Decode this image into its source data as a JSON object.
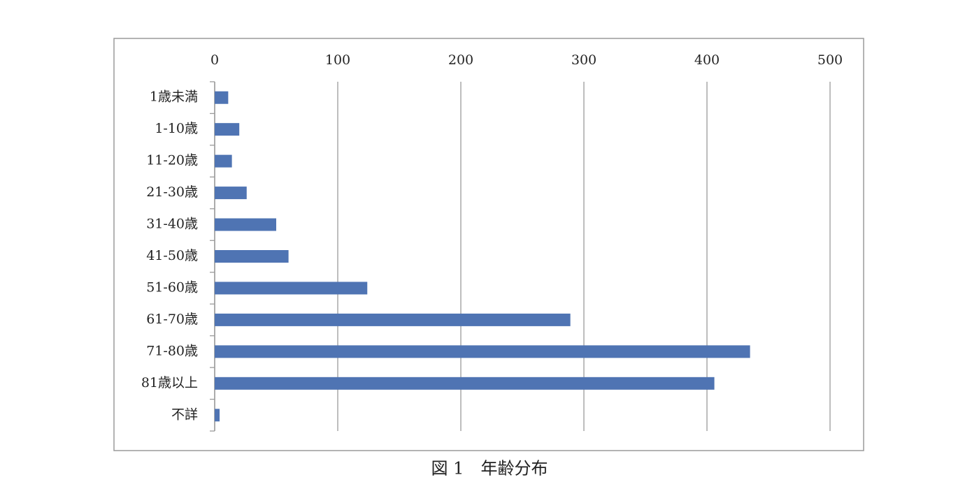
{
  "chart_data": {
    "type": "bar",
    "orientation": "horizontal",
    "title": "図 1　年齢分布",
    "categories": [
      "1歳未満",
      "1-10歳",
      "11-20歳",
      "21-30歳",
      "31-40歳",
      "41-50歳",
      "51-60歳",
      "61-70歳",
      "71-80歳",
      "81歳以上",
      "不詳"
    ],
    "values": [
      11,
      20,
      14,
      26,
      50,
      60,
      124,
      289,
      435,
      406,
      4
    ],
    "color": "#4f74b3",
    "xlim": [
      0,
      500
    ],
    "xticks": [
      0,
      100,
      200,
      300,
      400,
      500
    ],
    "grid": true
  }
}
